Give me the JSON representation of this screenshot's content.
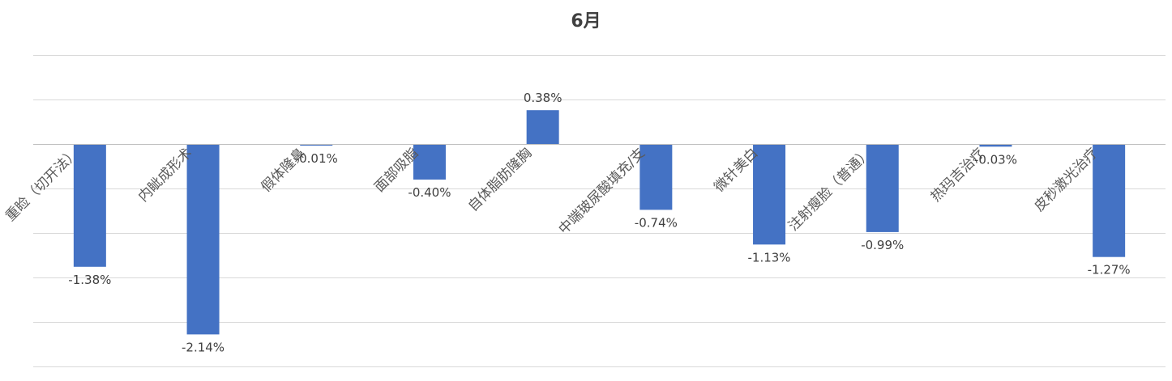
{
  "chart_data": {
    "type": "bar",
    "title": "6月",
    "categories": [
      "重睑（切开法）",
      "内眦成形术",
      "假体隆鼻",
      "面部吸脂",
      "自体脂肪隆胸",
      "中端玻尿酸填充/支",
      "微针美白",
      "注射瘦脸（普通）",
      "热玛吉治疗",
      "皮秒激光治疗"
    ],
    "values": [
      -1.38,
      -2.14,
      -0.01,
      -0.4,
      0.38,
      -0.74,
      -1.13,
      -0.99,
      -0.03,
      -1.27
    ],
    "value_labels": [
      "-1.38%",
      "-2.14%",
      "-0.01%",
      "-0.40%",
      "0.38%",
      "-0.74%",
      "-1.13%",
      "-0.99%",
      "-0.03%",
      "-1.27%"
    ],
    "value_format": "percent",
    "ylim": [
      -2.5,
      1.0
    ],
    "gridlines": true,
    "axis_tick_labels_shown": false,
    "category_label_rotation": "rotated -45°",
    "xlabel": "",
    "ylabel": "",
    "legend": "none",
    "colors": {
      "bar": "#4472C4",
      "grid": "#D9D9D9",
      "axis": "#BFBFBF",
      "label": "#404040",
      "category_label": "#595959"
    }
  }
}
